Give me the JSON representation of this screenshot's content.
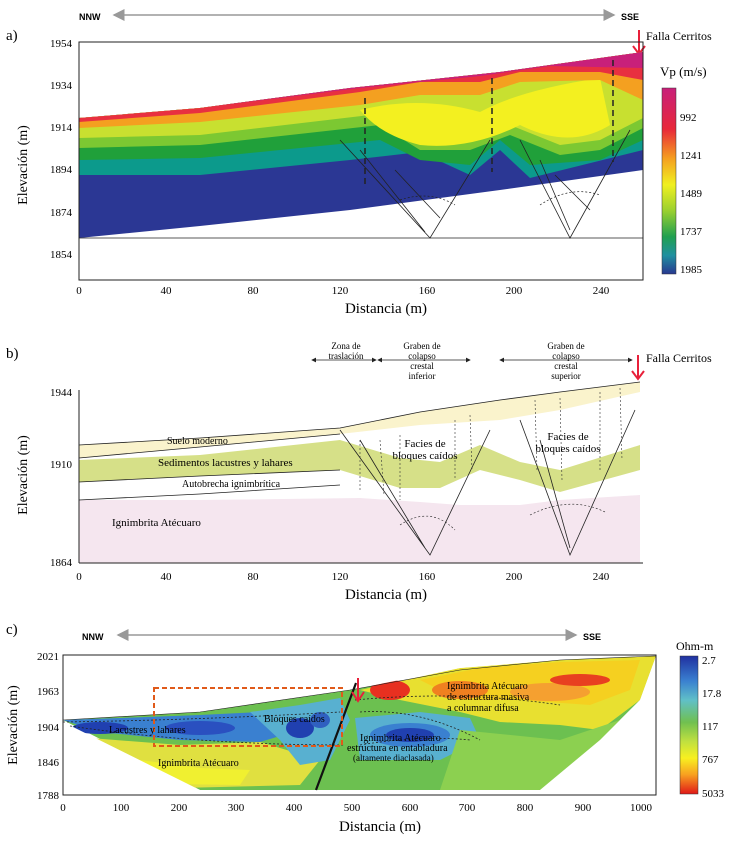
{
  "panel_a": {
    "label": "a)",
    "dir_left": "NNW",
    "dir_right": "SSE",
    "fault_label": "Falla Cerritos",
    "ylabel": "Elevación (m)",
    "xlabel": "Distancia (m)",
    "yticks": [
      "1954",
      "1934",
      "1914",
      "1894",
      "1874",
      "1854"
    ],
    "xticks": [
      "0",
      "40",
      "80",
      "120",
      "160",
      "200",
      "240"
    ],
    "colorbar_title": "Vp (m/s)",
    "colorbar_ticks": [
      "992",
      "1241",
      "1489",
      "1737",
      "1985"
    ]
  },
  "panel_b": {
    "label": "b)",
    "fault_label": "Falla Cerritos",
    "zones": [
      {
        "line1": "Zona de",
        "line2": "traslación",
        "line3": "",
        "line4": ""
      },
      {
        "line1": "Graben de",
        "line2": "colapso",
        "line3": "crestal",
        "line4": "inferior"
      },
      {
        "line1": "Graben de",
        "line2": "colapso",
        "line3": "crestal",
        "line4": "superior"
      }
    ],
    "ylabel": "Elevación (m)",
    "xlabel": "Distancia (m)",
    "yticks": [
      "1944",
      "1910",
      "1864"
    ],
    "xticks": [
      "0",
      "40",
      "80",
      "120",
      "160",
      "200",
      "240"
    ],
    "units": [
      "Suelo moderno",
      "Sedimentos lacustres y lahares",
      "Autobrecha ignimbrítica",
      "Ignimbrita Atécuaro"
    ],
    "facies_1": {
      "line1": "Facies de",
      "line2": "bloques caídos"
    },
    "facies_2": {
      "line1": "Facies de",
      "line2": "bloques caídos"
    }
  },
  "panel_c": {
    "label": "c)",
    "dir_left": "NNW",
    "dir_right": "SSE",
    "ylabel": "Elevación (m)",
    "xlabel": "Distancia (m)",
    "yticks": [
      "2021",
      "1963",
      "1904",
      "1846",
      "1788"
    ],
    "xticks": [
      "0",
      "100",
      "200",
      "300",
      "400",
      "500",
      "600",
      "700",
      "800",
      "900",
      "1000"
    ],
    "colorbar_title": "Ohm-m",
    "colorbar_ticks": [
      "2.7",
      "17.8",
      "117",
      "767",
      "5033"
    ],
    "labels": {
      "lacustres": "Lacustres y lahares",
      "bloques": "Bloques caídos",
      "ign_left": "Ignimbrita Atécuaro",
      "ign_masiva_1": "Ignimbrita Atécuaro",
      "ign_masiva_2": "de estructura masiva",
      "ign_masiva_3": "a columnar difusa",
      "ign_entab_1": "Ignimbrita Atécuaro",
      "ign_entab_2": "estructura en entabladura",
      "ign_entab_3": "(altamente diaclasada)"
    }
  },
  "colors": {
    "fault_arrow": "#e8203a",
    "dashed_box": "#e05a1a"
  }
}
